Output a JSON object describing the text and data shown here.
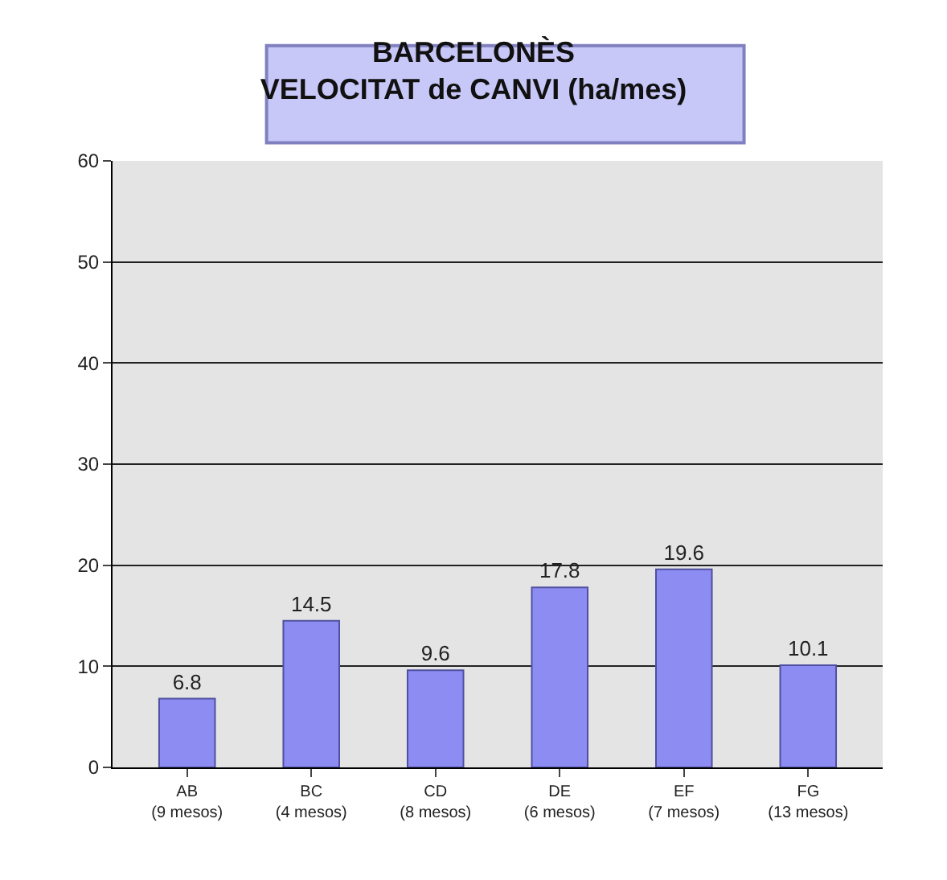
{
  "chart_data": {
    "type": "bar",
    "title": "BARCELONÈS\nVELOCITAT de CANVI (ha/mes)",
    "categories": [
      "AB\n(9 mesos)",
      "BC\n(4 mesos)",
      "CD\n(8 mesos)",
      "DE\n(6 mesos)",
      "EF\n(7 mesos)",
      "FG\n(13 mesos)"
    ],
    "values": [
      6.8,
      14.5,
      9.6,
      17.8,
      19.6,
      10.1
    ],
    "color": "#8c8cf2",
    "ylim": [
      0,
      60
    ],
    "yticks": [
      0,
      10,
      20,
      30,
      40,
      50,
      60
    ],
    "grid": "y",
    "data_labels": true
  }
}
